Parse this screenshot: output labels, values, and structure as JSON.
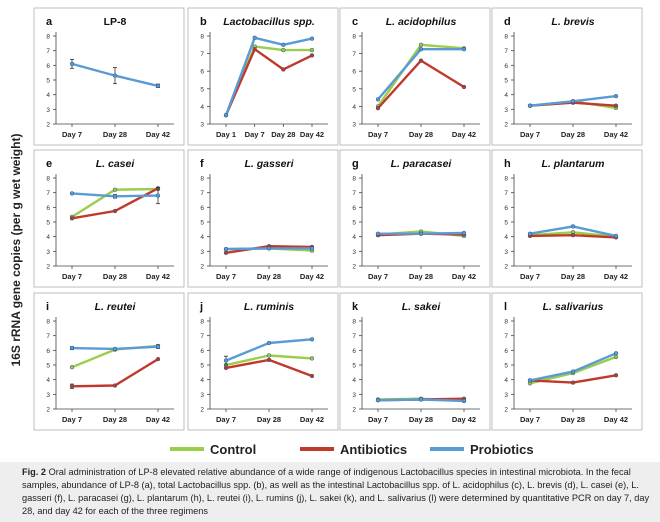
{
  "y_axis_label": "16S rRNA gene copies (per g wet weight)",
  "legend": [
    {
      "name": "Control",
      "color": "#9acd4a"
    },
    {
      "name": "Antibiotics",
      "color": "#c0392b"
    },
    {
      "name": "Probiotics",
      "color": "#5b9bd5"
    }
  ],
  "caption": {
    "fig_label": "Fig. 2",
    "text": "Oral administration of LP-8 elevated relative abundance of a wide range of indigenous Lactobacillus species in intestinal microbiota. In the fecal samples, abundance of LP-8 (a), total Lactobacillus spp. (b), as well as the intestinal Lactobacillus spp. of L. acidophilus (c), L. brevis (d), L. casei (e), L. gasseri (f), L. paracasei (g), L. plantarum (h), L. reutei (i), L. rumins (j), L. sakei (k), and L. salivarius (l) were determined by quantitative PCR on day 7, day 28, and day 42 for each of the three regimens"
  },
  "chart_data": [
    {
      "panel": "a",
      "type": "line",
      "title": "LP-8",
      "title_italic": false,
      "categories": [
        "Day 7",
        "Day 28",
        "Day 42"
      ],
      "ylim": [
        2,
        8
      ],
      "yticks": [
        2,
        3,
        4,
        5,
        6,
        7,
        8
      ],
      "series": [
        {
          "name": "Probiotics",
          "values": [
            6.1,
            5.3,
            4.6
          ],
          "errors": [
            0.3,
            0.55,
            0.12
          ]
        }
      ]
    },
    {
      "panel": "b",
      "type": "line",
      "title": "Lactobacillus spp.",
      "title_italic": true,
      "categories": [
        "Day 1",
        "Day 7",
        "Day 28",
        "Day 42"
      ],
      "ylim": [
        3,
        8
      ],
      "yticks": [
        3,
        4,
        5,
        6,
        7,
        8
      ],
      "series": [
        {
          "name": "Control",
          "values": [
            3.5,
            7.4,
            7.2,
            7.2
          ]
        },
        {
          "name": "Antibiotics",
          "values": [
            3.5,
            7.25,
            6.1,
            6.9
          ]
        },
        {
          "name": "Probiotics",
          "values": [
            3.5,
            7.9,
            7.5,
            7.85
          ]
        }
      ]
    },
    {
      "panel": "c",
      "type": "line",
      "title": "L. acidophilus",
      "title_italic": true,
      "categories": [
        "Day 7",
        "Day 28",
        "Day 42"
      ],
      "ylim": [
        3,
        8
      ],
      "yticks": [
        3,
        4,
        5,
        6,
        7,
        8
      ],
      "series": [
        {
          "name": "Control",
          "values": [
            4.0,
            7.5,
            7.3
          ]
        },
        {
          "name": "Antibiotics",
          "values": [
            3.9,
            6.6,
            5.1
          ]
        },
        {
          "name": "Probiotics",
          "values": [
            4.4,
            7.25,
            7.25
          ]
        }
      ]
    },
    {
      "panel": "d",
      "type": "line",
      "title": "L. brevis",
      "title_italic": true,
      "categories": [
        "Day 7",
        "Day 28",
        "Day 42"
      ],
      "ylim": [
        2,
        8
      ],
      "yticks": [
        2,
        3,
        4,
        5,
        6,
        7,
        8
      ],
      "series": [
        {
          "name": "Control",
          "values": [
            3.25,
            3.55,
            3.1
          ]
        },
        {
          "name": "Antibiotics",
          "values": [
            3.25,
            3.45,
            3.25
          ]
        },
        {
          "name": "Probiotics",
          "values": [
            3.25,
            3.55,
            3.9
          ]
        }
      ]
    },
    {
      "panel": "e",
      "type": "line",
      "title": "L. casei",
      "title_italic": true,
      "categories": [
        "Day 7",
        "Day 28",
        "Day 42"
      ],
      "ylim": [
        2,
        8
      ],
      "yticks": [
        2,
        3,
        4,
        5,
        6,
        7,
        8
      ],
      "series": [
        {
          "name": "Control",
          "values": [
            5.35,
            7.2,
            7.25
          ]
        },
        {
          "name": "Antibiotics",
          "values": [
            5.25,
            5.75,
            7.3
          ]
        },
        {
          "name": "Probiotics",
          "values": [
            6.95,
            6.75,
            6.8
          ],
          "errors": [
            0,
            0.12,
            0.55
          ]
        }
      ]
    },
    {
      "panel": "f",
      "type": "line",
      "title": "L. gasseri",
      "title_italic": true,
      "categories": [
        "Day 7",
        "Day 28",
        "Day 42"
      ],
      "ylim": [
        2,
        8
      ],
      "yticks": [
        2,
        3,
        4,
        5,
        6,
        7,
        8
      ],
      "series": [
        {
          "name": "Control",
          "values": [
            3.15,
            3.2,
            3.05
          ]
        },
        {
          "name": "Antibiotics",
          "values": [
            2.9,
            3.35,
            3.3
          ]
        },
        {
          "name": "Probiotics",
          "values": [
            3.15,
            3.2,
            3.2
          ]
        }
      ]
    },
    {
      "panel": "g",
      "type": "line",
      "title": "L. paracasei",
      "title_italic": true,
      "categories": [
        "Day 7",
        "Day 28",
        "Day 42"
      ],
      "ylim": [
        2,
        8
      ],
      "yticks": [
        2,
        3,
        4,
        5,
        6,
        7,
        8
      ],
      "series": [
        {
          "name": "Control",
          "values": [
            4.15,
            4.35,
            4.05
          ]
        },
        {
          "name": "Antibiotics",
          "values": [
            4.1,
            4.2,
            4.15
          ]
        },
        {
          "name": "Probiotics",
          "values": [
            4.2,
            4.2,
            4.25
          ]
        }
      ]
    },
    {
      "panel": "h",
      "type": "line",
      "title": "L. plantarum",
      "title_italic": true,
      "categories": [
        "Day 7",
        "Day 28",
        "Day 42"
      ],
      "ylim": [
        2,
        8
      ],
      "yticks": [
        2,
        3,
        4,
        5,
        6,
        7,
        8
      ],
      "series": [
        {
          "name": "Control",
          "values": [
            4.1,
            4.3,
            4.0
          ]
        },
        {
          "name": "Antibiotics",
          "values": [
            4.05,
            4.1,
            3.95
          ]
        },
        {
          "name": "Probiotics",
          "values": [
            4.2,
            4.7,
            4.05
          ]
        }
      ]
    },
    {
      "panel": "i",
      "type": "line",
      "title": "L. reutei",
      "title_italic": true,
      "categories": [
        "Day 7",
        "Day 28",
        "Day 42"
      ],
      "ylim": [
        2,
        8
      ],
      "yticks": [
        2,
        3,
        4,
        5,
        6,
        7,
        8
      ],
      "series": [
        {
          "name": "Control",
          "values": [
            4.85,
            6.05,
            6.3
          ]
        },
        {
          "name": "Antibiotics",
          "values": [
            3.55,
            3.6,
            5.4
          ],
          "errors": [
            0.15,
            0,
            0
          ]
        },
        {
          "name": "Probiotics",
          "values": [
            6.15,
            6.1,
            6.25
          ],
          "errors": [
            0.1,
            0,
            0.12
          ]
        }
      ]
    },
    {
      "panel": "j",
      "type": "line",
      "title": "L. ruminis",
      "title_italic": true,
      "categories": [
        "Day 7",
        "Day 28",
        "Day 42"
      ],
      "ylim": [
        2,
        8
      ],
      "yticks": [
        2,
        3,
        4,
        5,
        6,
        7,
        8
      ],
      "series": [
        {
          "name": "Control",
          "values": [
            5.0,
            5.65,
            5.45
          ]
        },
        {
          "name": "Antibiotics",
          "values": [
            4.8,
            5.35,
            4.25
          ]
        },
        {
          "name": "Probiotics",
          "values": [
            5.3,
            6.5,
            6.75
          ],
          "errors": [
            0.3,
            0,
            0
          ]
        }
      ]
    },
    {
      "panel": "k",
      "type": "line",
      "title": "L. sakei",
      "title_italic": true,
      "categories": [
        "Day 7",
        "Day 28",
        "Day 42"
      ],
      "ylim": [
        2,
        8
      ],
      "yticks": [
        2,
        3,
        4,
        5,
        6,
        7,
        8
      ],
      "series": [
        {
          "name": "Control",
          "values": [
            2.65,
            2.7,
            2.55
          ]
        },
        {
          "name": "Antibiotics",
          "values": [
            2.6,
            2.65,
            2.7
          ]
        },
        {
          "name": "Probiotics",
          "values": [
            2.6,
            2.65,
            2.55
          ]
        }
      ]
    },
    {
      "panel": "l",
      "type": "line",
      "title": "L. salivarius",
      "title_italic": true,
      "categories": [
        "Day 7",
        "Day 28",
        "Day 42"
      ],
      "ylim": [
        2,
        8
      ],
      "yticks": [
        2,
        3,
        4,
        5,
        6,
        7,
        8
      ],
      "series": [
        {
          "name": "Control",
          "values": [
            3.75,
            4.45,
            5.55
          ]
        },
        {
          "name": "Antibiotics",
          "values": [
            3.95,
            3.8,
            4.3
          ]
        },
        {
          "name": "Probiotics",
          "values": [
            3.95,
            4.55,
            5.8
          ]
        }
      ]
    }
  ]
}
